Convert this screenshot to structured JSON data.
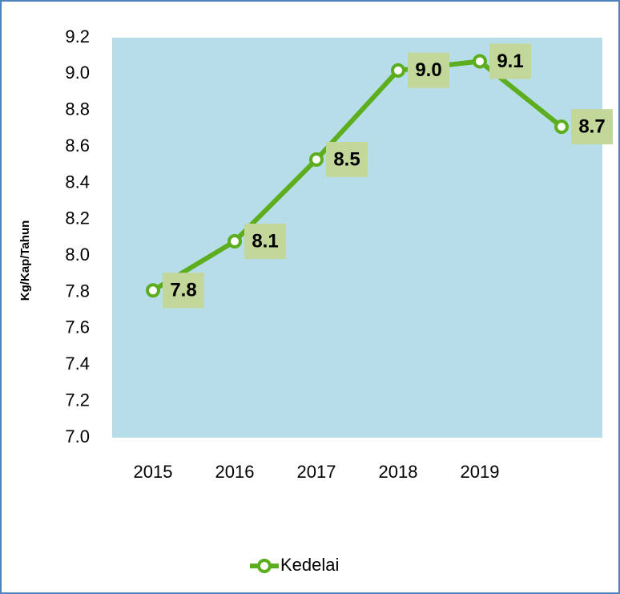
{
  "chart_data": {
    "type": "line",
    "y_label": "Kg/Kap/Tahun",
    "categories": [
      "2015",
      "2016",
      "2017",
      "2018",
      "2019",
      null
    ],
    "series": [
      {
        "name": "Kedelai",
        "color": "#5cae1e",
        "values": [
          7.81,
          8.08,
          8.53,
          9.02,
          9.07,
          8.71
        ],
        "value_labels": [
          "7.8",
          "8.1",
          "8.5",
          "9.0",
          "9.1",
          "8.7"
        ]
      }
    ],
    "ylim": [
      7.0,
      9.2
    ],
    "yticks": [
      {
        "value": 7.0,
        "label": "7.0"
      },
      7.2,
      7.4,
      7.6,
      7.8,
      {
        "value": 8.0,
        "label": "8.0"
      },
      8.2,
      8.4,
      8.6,
      8.8,
      {
        "value": 9.0,
        "label": "9.0"
      },
      9.2
    ],
    "plot_color": "#b7dde8",
    "label_box_color": "#c4d79b",
    "legend": "bottom"
  }
}
